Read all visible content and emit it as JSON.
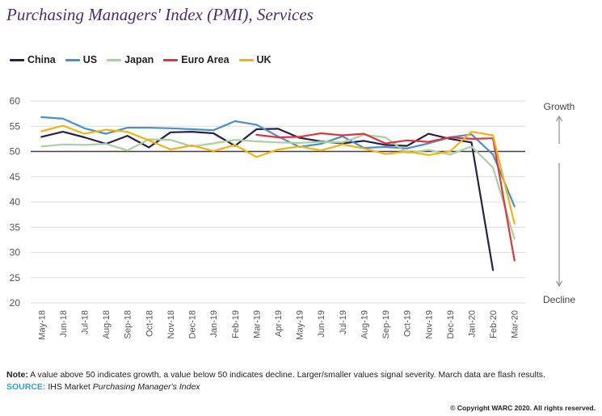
{
  "title": "Purchasing Managers' Index (PMI), Services",
  "note_label": "Note:",
  "note_text": " A value above 50 indicates growth, a value below 50 indicates decline. Larger/smaller values signal severity. March data are flash results.",
  "source_label": "SOURCE:",
  "source_text": " IHS Market ",
  "source_italic": "Purchasing Manager's Index",
  "copyright": "© Copyright WARC 2020. All rights reserved.",
  "colors": {
    "China": "#2a1f4a",
    "US": "#4a90c8",
    "Japan": "#a8d0a0",
    "Euro Area": "#d9393e",
    "UK": "#f0b40f",
    "baseline": "#4a3a3a",
    "grid": "#dddddd",
    "axis_text": "#555555"
  },
  "chart_data": {
    "type": "line",
    "title": "Purchasing Managers' Index (PMI), Services",
    "categories": [
      "May-18",
      "Jun-18",
      "Jul-18",
      "Aug-18",
      "Sep-18",
      "Oct-18",
      "Nov-18",
      "Dec-18",
      "Jan-19",
      "Feb-19",
      "Mar-19",
      "Apr-19",
      "May-19",
      "Jun-19",
      "Jul-19",
      "Aug-19",
      "Sep-19",
      "Oct-19",
      "Nov-19",
      "Dec-19",
      "Jan-20",
      "Feb-20",
      "Mar-20"
    ],
    "ylim": [
      20,
      60
    ],
    "yticks": [
      20,
      25,
      30,
      35,
      40,
      45,
      50,
      55,
      60
    ],
    "baseline": 50,
    "grid": true,
    "legend_position": "top-left",
    "series": [
      {
        "name": "China",
        "values": [
          52.9,
          53.9,
          52.8,
          51.5,
          53.1,
          50.8,
          53.8,
          53.9,
          53.6,
          51.1,
          54.4,
          54.5,
          52.7,
          52.0,
          51.6,
          52.1,
          51.3,
          51.1,
          53.5,
          52.5,
          51.8,
          26.5,
          null
        ]
      },
      {
        "name": "US",
        "values": [
          56.8,
          56.5,
          54.6,
          53.5,
          54.7,
          54.7,
          54.6,
          54.4,
          54.2,
          56.0,
          55.3,
          53.0,
          50.9,
          51.5,
          53.0,
          50.7,
          50.9,
          50.6,
          51.6,
          52.8,
          53.4,
          49.4,
          39.1
        ]
      },
      {
        "name": "Japan",
        "values": [
          51.0,
          51.4,
          51.3,
          51.5,
          50.2,
          52.4,
          52.3,
          51.0,
          51.6,
          52.3,
          52.0,
          51.8,
          51.7,
          51.9,
          51.8,
          53.3,
          52.8,
          49.7,
          50.3,
          49.4,
          51.0,
          46.8,
          32.7
        ]
      },
      {
        "name": "Euro Area",
        "values": [
          null,
          null,
          null,
          null,
          null,
          null,
          null,
          null,
          null,
          null,
          53.3,
          52.8,
          52.9,
          53.6,
          53.2,
          53.5,
          51.6,
          52.2,
          51.9,
          52.8,
          52.5,
          52.6,
          28.4
        ]
      },
      {
        "name": "UK",
        "values": [
          54.0,
          55.1,
          53.5,
          54.3,
          53.9,
          52.2,
          50.4,
          51.2,
          50.1,
          51.3,
          48.9,
          50.4,
          51.0,
          50.2,
          51.4,
          50.6,
          49.5,
          50.0,
          49.3,
          50.0,
          53.9,
          53.2,
          35.7
        ]
      }
    ],
    "annotations": {
      "growth": "Growth",
      "decline": "Decline"
    }
  }
}
